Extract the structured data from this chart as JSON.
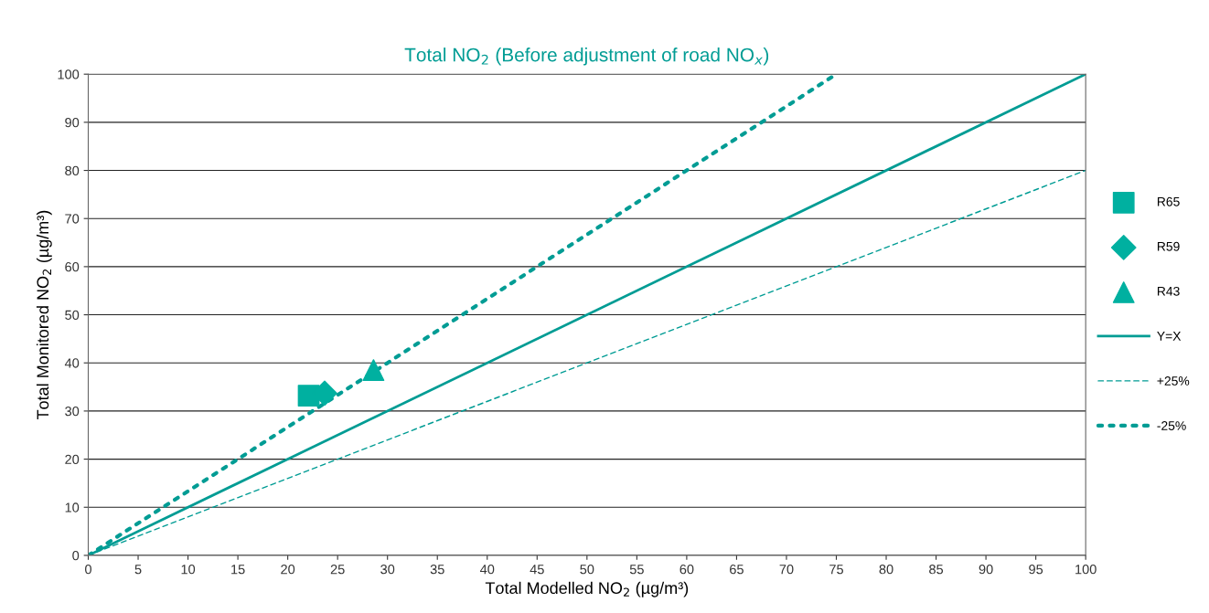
{
  "chart_data": {
    "type": "scatter",
    "title": "Total NO$_{2}$ (Before adjustment of road NO$_{x}$)",
    "xlabel": "Total Modelled NO$_{2}$ (µg/m³)",
    "ylabel": "Total Monitored NO$_{2}$ (µg/m³)",
    "xlim": [
      0,
      100
    ],
    "ylim": [
      0,
      100
    ],
    "xticks": [
      0,
      5,
      10,
      15,
      20,
      25,
      30,
      35,
      40,
      45,
      50,
      55,
      60,
      65,
      70,
      75,
      80,
      85,
      90,
      95,
      100
    ],
    "yticks": [
      0,
      10,
      20,
      30,
      40,
      50,
      60,
      70,
      80,
      90,
      100
    ],
    "grid": "y",
    "legend": "right",
    "series": [
      {
        "name": "R65",
        "marker": "square",
        "color": "#00b0a0",
        "x": [
          22.1
        ],
        "values": [
          33.2
        ]
      },
      {
        "name": "R59",
        "marker": "diamond",
        "color": "#00b0a0",
        "x": [
          23.7
        ],
        "values": [
          33.7
        ]
      },
      {
        "name": "R43",
        "marker": "triangle",
        "color": "#00b0a0",
        "x": [
          28.6
        ],
        "values": [
          38.5
        ]
      },
      {
        "name": "Y=X",
        "type": "line",
        "line_style": "solid",
        "color": "#009c94",
        "x": [
          0,
          100
        ],
        "values": [
          0,
          100
        ]
      },
      {
        "name": "+25%",
        "type": "line",
        "line_style": "dashed",
        "color": "#009c94",
        "x": [
          0,
          100
        ],
        "values": [
          0,
          80
        ]
      },
      {
        "name": "-25%",
        "type": "line",
        "line_style": "dotted",
        "color": "#009c94",
        "x": [
          0,
          75
        ],
        "values": [
          0,
          100
        ]
      }
    ]
  }
}
